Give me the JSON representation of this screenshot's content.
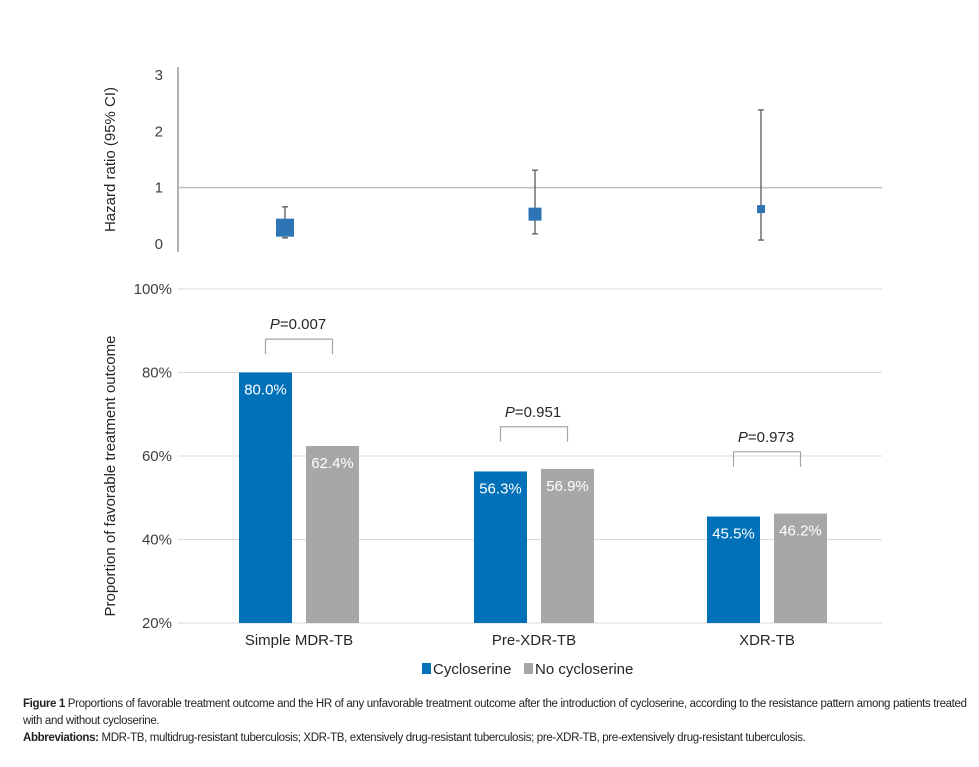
{
  "chart_data": [
    {
      "type": "forest",
      "title": "",
      "ylabel": "Hazard ratio (95% CI)",
      "ylim": [
        0,
        3
      ],
      "yticks": [
        "0",
        "1",
        "2",
        "3"
      ],
      "reference_line": 1,
      "categories": [
        "Simple MDR-TB",
        "Pre-XDR-TB",
        "XDR-TB"
      ],
      "points": [
        {
          "category": "Simple MDR-TB",
          "hr": 0.29,
          "ci_low": 0.11,
          "ci_high": 0.66,
          "weight": "large"
        },
        {
          "category": "Pre-XDR-TB",
          "hr": 0.53,
          "ci_low": 0.18,
          "ci_high": 1.31,
          "weight": "medium"
        },
        {
          "category": "XDR-TB",
          "hr": 0.62,
          "ci_low": 0.07,
          "ci_high": 2.38,
          "weight": "small"
        }
      ],
      "color": "#2e75b6"
    },
    {
      "type": "bar",
      "title": "",
      "xlabel": "",
      "ylabel": "Proportion of favorable treatment outcome",
      "ylim": [
        20,
        100
      ],
      "yticks": [
        "20%",
        "40%",
        "60%",
        "80%",
        "100%"
      ],
      "grid": true,
      "categories": [
        "Simple MDR-TB",
        "Pre-XDR-TB",
        "XDR-TB"
      ],
      "series": [
        {
          "name": "Cycloserine",
          "color": "#0070b8",
          "values": [
            80.0,
            56.3,
            45.5
          ],
          "labels": [
            "80.0%",
            "56.3%",
            "45.5%"
          ]
        },
        {
          "name": "No cycloserine",
          "color": "#a9a6a6",
          "values": [
            62.4,
            56.9,
            46.2
          ],
          "labels": [
            "62.4%",
            "56.9%",
            "46.2%"
          ]
        }
      ],
      "annotations": [
        {
          "category": "Simple MDR-TB",
          "p_label": "P",
          "p_value": "=0.007",
          "bracket_at": 88
        },
        {
          "category": "Pre-XDR-TB",
          "p_label": "P",
          "p_value": "=0.951",
          "bracket_at": 67
        },
        {
          "category": "XDR-TB",
          "p_label": "P",
          "p_value": "=0.973",
          "bracket_at": 61
        }
      ],
      "legend": {
        "placement": "bottom-center",
        "entries": [
          "Cycloserine",
          "No cycloserine"
        ]
      }
    }
  ],
  "caption": {
    "figure_label": "Figure 1",
    "figure_text": " Proportions of favorable treatment outcome and the HR of any unfavorable treatment outcome after the introduction of cycloserine, according to the resistance pattern among patients treated with and without cycloserine.",
    "abbrev_label": "Abbreviations:",
    "abbrev_text": " MDR-TB, multidrug-resistant tuberculosis; XDR-TB, extensively drug-resistant tuberculosis; pre-XDR-TB, pre-extensively drug-resistant tuberculosis."
  }
}
